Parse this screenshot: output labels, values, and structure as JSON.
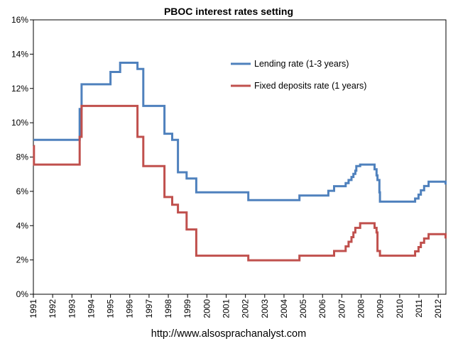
{
  "chart_data": {
    "type": "line",
    "title": "PBOC interest rates setting",
    "footer": "http://www.alsosprachanalyst.com",
    "xlabel": "",
    "ylabel": "",
    "xlim": [
      1991,
      2012.4
    ],
    "ylim": [
      0,
      16
    ],
    "y_ticks": [
      "0%",
      "2%",
      "4%",
      "6%",
      "8%",
      "10%",
      "12%",
      "14%",
      "16%"
    ],
    "x_ticks": [
      "1991",
      "1992",
      "1993",
      "1994",
      "1995",
      "1996",
      "1997",
      "1998",
      "1999",
      "2000",
      "2001",
      "2002",
      "2003",
      "2004",
      "2005",
      "2006",
      "2007",
      "2008",
      "2009",
      "2010",
      "2011",
      "2012"
    ],
    "grid": false,
    "legend_position": "top-right",
    "series": [
      {
        "name": "Lending rate (1-3 years)",
        "color": "#4f81bd",
        "points": [
          [
            1991.0,
            9.0
          ],
          [
            1993.4,
            9.0
          ],
          [
            1993.4,
            10.8
          ],
          [
            1993.5,
            10.8
          ],
          [
            1993.5,
            12.24
          ],
          [
            1995.0,
            12.24
          ],
          [
            1995.0,
            12.96
          ],
          [
            1995.5,
            12.96
          ],
          [
            1995.5,
            13.5
          ],
          [
            1996.4,
            13.5
          ],
          [
            1996.4,
            13.14
          ],
          [
            1996.7,
            13.14
          ],
          [
            1996.7,
            10.98
          ],
          [
            1997.8,
            10.98
          ],
          [
            1997.8,
            9.36
          ],
          [
            1998.2,
            9.36
          ],
          [
            1998.2,
            9.0
          ],
          [
            1998.5,
            9.0
          ],
          [
            1998.5,
            7.11
          ],
          [
            1998.95,
            7.11
          ],
          [
            1998.95,
            6.75
          ],
          [
            1999.45,
            6.75
          ],
          [
            1999.45,
            5.94
          ],
          [
            2002.15,
            5.94
          ],
          [
            2002.15,
            5.49
          ],
          [
            2004.8,
            5.49
          ],
          [
            2004.8,
            5.76
          ],
          [
            2006.3,
            5.76
          ],
          [
            2006.3,
            6.03
          ],
          [
            2006.6,
            6.03
          ],
          [
            2006.6,
            6.3
          ],
          [
            2007.2,
            6.3
          ],
          [
            2007.2,
            6.48
          ],
          [
            2007.35,
            6.48
          ],
          [
            2007.35,
            6.66
          ],
          [
            2007.5,
            6.66
          ],
          [
            2007.5,
            6.84
          ],
          [
            2007.6,
            6.84
          ],
          [
            2007.6,
            7.02
          ],
          [
            2007.7,
            7.02
          ],
          [
            2007.7,
            7.2
          ],
          [
            2007.75,
            7.2
          ],
          [
            2007.75,
            7.47
          ],
          [
            2007.95,
            7.47
          ],
          [
            2007.95,
            7.56
          ],
          [
            2008.7,
            7.56
          ],
          [
            2008.7,
            7.29
          ],
          [
            2008.8,
            7.29
          ],
          [
            2008.8,
            6.93
          ],
          [
            2008.85,
            6.93
          ],
          [
            2008.85,
            6.66
          ],
          [
            2008.95,
            6.66
          ],
          [
            2008.95,
            5.94
          ],
          [
            2008.98,
            5.94
          ],
          [
            2008.98,
            5.4
          ],
          [
            2010.8,
            5.4
          ],
          [
            2010.8,
            5.58
          ],
          [
            2010.98,
            5.58
          ],
          [
            2010.98,
            5.81
          ],
          [
            2011.1,
            5.81
          ],
          [
            2011.1,
            6.06
          ],
          [
            2011.27,
            6.06
          ],
          [
            2011.27,
            6.31
          ],
          [
            2011.5,
            6.31
          ],
          [
            2011.5,
            6.56
          ],
          [
            2012.38,
            6.56
          ],
          [
            2012.38,
            6.4
          ]
        ]
      },
      {
        "name": "Fixed deposits rate (1 years)",
        "color": "#c0504d",
        "points": [
          [
            1991.0,
            8.64
          ],
          [
            1991.03,
            8.64
          ],
          [
            1991.03,
            7.56
          ],
          [
            1993.4,
            7.56
          ],
          [
            1993.4,
            9.18
          ],
          [
            1993.5,
            9.18
          ],
          [
            1993.5,
            10.98
          ],
          [
            1996.4,
            10.98
          ],
          [
            1996.4,
            9.18
          ],
          [
            1996.7,
            9.18
          ],
          [
            1996.7,
            7.47
          ],
          [
            1997.8,
            7.47
          ],
          [
            1997.8,
            5.67
          ],
          [
            1998.2,
            5.67
          ],
          [
            1998.2,
            5.22
          ],
          [
            1998.5,
            5.22
          ],
          [
            1998.5,
            4.77
          ],
          [
            1998.95,
            4.77
          ],
          [
            1998.95,
            3.78
          ],
          [
            1999.45,
            3.78
          ],
          [
            1999.45,
            2.25
          ],
          [
            2002.15,
            2.25
          ],
          [
            2002.15,
            1.98
          ],
          [
            2004.8,
            1.98
          ],
          [
            2004.8,
            2.25
          ],
          [
            2006.6,
            2.25
          ],
          [
            2006.6,
            2.52
          ],
          [
            2007.2,
            2.52
          ],
          [
            2007.2,
            2.79
          ],
          [
            2007.35,
            2.79
          ],
          [
            2007.35,
            3.06
          ],
          [
            2007.5,
            3.06
          ],
          [
            2007.5,
            3.33
          ],
          [
            2007.6,
            3.33
          ],
          [
            2007.6,
            3.6
          ],
          [
            2007.7,
            3.6
          ],
          [
            2007.7,
            3.87
          ],
          [
            2007.95,
            3.87
          ],
          [
            2007.95,
            4.14
          ],
          [
            2008.7,
            4.14
          ],
          [
            2008.7,
            3.87
          ],
          [
            2008.8,
            3.87
          ],
          [
            2008.8,
            3.6
          ],
          [
            2008.85,
            3.6
          ],
          [
            2008.85,
            2.52
          ],
          [
            2008.98,
            2.52
          ],
          [
            2008.98,
            2.25
          ],
          [
            2010.8,
            2.25
          ],
          [
            2010.8,
            2.5
          ],
          [
            2010.98,
            2.5
          ],
          [
            2010.98,
            2.75
          ],
          [
            2011.1,
            2.75
          ],
          [
            2011.1,
            3.0
          ],
          [
            2011.27,
            3.0
          ],
          [
            2011.27,
            3.25
          ],
          [
            2011.5,
            3.25
          ],
          [
            2011.5,
            3.5
          ],
          [
            2012.38,
            3.5
          ],
          [
            2012.38,
            3.25
          ]
        ]
      }
    ]
  }
}
